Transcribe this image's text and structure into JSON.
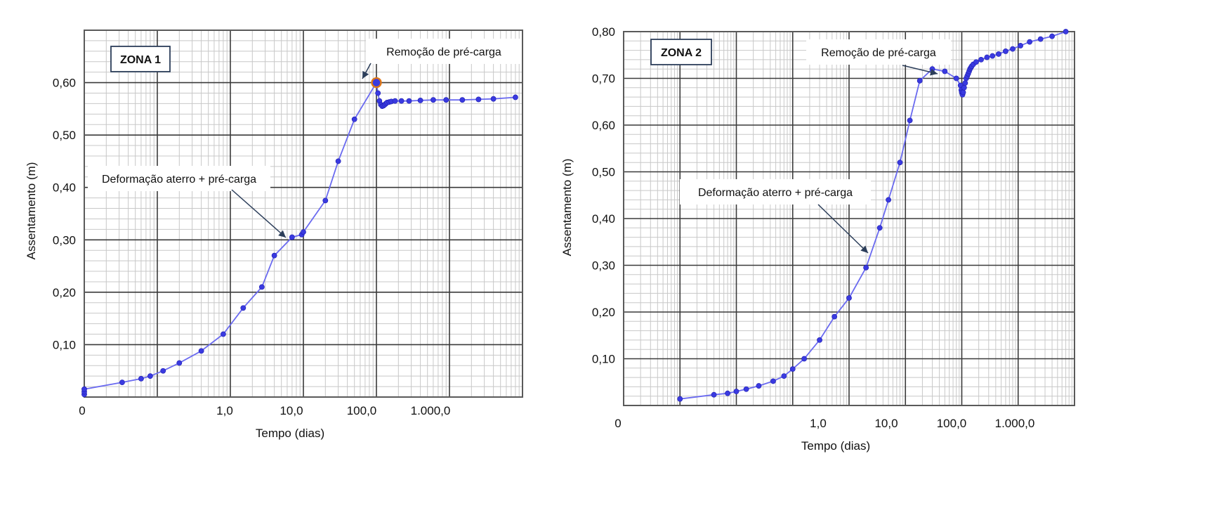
{
  "chart_data": [
    {
      "type": "line",
      "zone_label": "ZONA 1",
      "xlabel": "Tempo (dias)",
      "ylabel": "Assentamento (m)",
      "x_scale": "log",
      "x_tick_labels": [
        "0",
        "1,0",
        "10,0",
        "100,0",
        "1.000,0"
      ],
      "y_tick_labels": [
        "0,10",
        "0,20",
        "0,30",
        "0,40",
        "0,50",
        "0,60"
      ],
      "ylim": [
        0,
        0.7
      ],
      "grid": true,
      "annotations": [
        {
          "text": "Remoção de pré-carga"
        },
        {
          "text": "Deformação aterro + pré-carga"
        }
      ],
      "series": [
        {
          "name": "Assentamento",
          "color": "#3a3ae0",
          "x": [
            0.01,
            0.01,
            0.01,
            0.033,
            0.06,
            0.08,
            0.12,
            0.2,
            0.4,
            0.8,
            1.5,
            2.7,
            4.0,
            7.0,
            9.5,
            10.0,
            20.0,
            30.0,
            50.0,
            100.0,
            105.0,
            110.0,
            115.0,
            120.0,
            125.0,
            130.0,
            135.0,
            140.0,
            150.0,
            160.0,
            180.0,
            220.0,
            280.0,
            400.0,
            600.0,
            900.0,
            1500.0,
            2500.0,
            4000.0,
            8000.0
          ],
          "values": [
            0.005,
            0.01,
            0.015,
            0.028,
            0.035,
            0.04,
            0.05,
            0.065,
            0.088,
            0.12,
            0.17,
            0.21,
            0.27,
            0.305,
            0.31,
            0.315,
            0.375,
            0.45,
            0.53,
            0.6,
            0.58,
            0.565,
            0.558,
            0.555,
            0.556,
            0.558,
            0.56,
            0.562,
            0.563,
            0.564,
            0.565,
            0.565,
            0.565,
            0.566,
            0.567,
            0.567,
            0.567,
            0.568,
            0.569,
            0.572
          ]
        }
      ],
      "highlight_point": {
        "x": 100.0,
        "value": 0.6,
        "color": "#e07818"
      }
    },
    {
      "type": "line",
      "zone_label": "ZONA 2",
      "xlabel": "Tempo (dias)",
      "ylabel": "Assentamento (m)",
      "x_scale": "log",
      "x_tick_labels": [
        "0",
        "1,0",
        "10,0",
        "100,0",
        "1.000,0"
      ],
      "y_tick_labels": [
        "0,10",
        "0,20",
        "0,30",
        "0,40",
        "0,50",
        "0,60",
        "0,70",
        "0,80"
      ],
      "ylim": [
        0,
        0.8
      ],
      "grid": true,
      "annotations": [
        {
          "text": "Remoção de pré-carga"
        },
        {
          "text": "Deformação aterro + pré-carga"
        }
      ],
      "series": [
        {
          "name": "Assentamento",
          "color": "#3a3ae0",
          "x": [
            0.001,
            0.004,
            0.007,
            0.01,
            0.015,
            0.025,
            0.045,
            0.07,
            0.1,
            0.16,
            0.3,
            0.55,
            1.0,
            2.0,
            3.5,
            5.0,
            8.0,
            12.0,
            18.0,
            30.0,
            50.0,
            80.0,
            95.0,
            98.0,
            100.0,
            103.0,
            106.0,
            110.0,
            115.0,
            120.0,
            125.0,
            130.0,
            135.0,
            140.0,
            145.0,
            150.0,
            160.0,
            180.0,
            220.0,
            280.0,
            350.0,
            450.0,
            600.0,
            800.0,
            1100.0,
            1600.0,
            2500.0,
            4000.0,
            7000.0
          ],
          "values": [
            0.014,
            0.023,
            0.026,
            0.03,
            0.035,
            0.042,
            0.052,
            0.063,
            0.078,
            0.1,
            0.14,
            0.19,
            0.23,
            0.295,
            0.38,
            0.44,
            0.52,
            0.61,
            0.695,
            0.72,
            0.715,
            0.7,
            0.685,
            0.675,
            0.67,
            0.665,
            0.67,
            0.68,
            0.69,
            0.7,
            0.705,
            0.71,
            0.715,
            0.72,
            0.723,
            0.726,
            0.73,
            0.735,
            0.74,
            0.745,
            0.748,
            0.752,
            0.758,
            0.763,
            0.77,
            0.778,
            0.784,
            0.79,
            0.8
          ]
        }
      ]
    }
  ]
}
